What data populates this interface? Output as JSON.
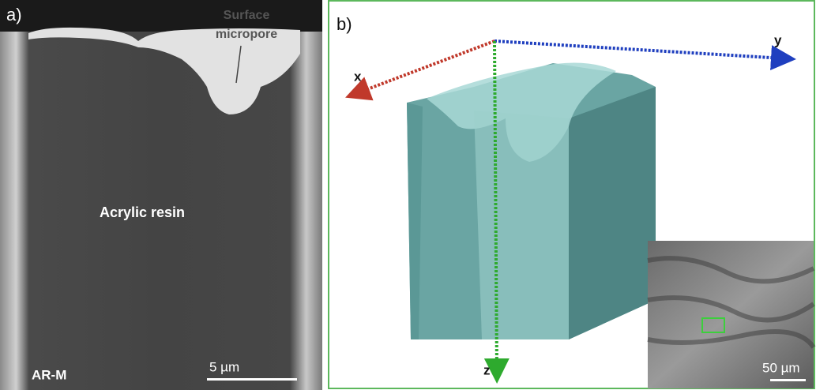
{
  "panel_a": {
    "label": "a)",
    "annotation": [
      "Surface",
      "micropore"
    ],
    "region_label": "Acrylic resin",
    "sample_label": "AR-M",
    "scale_bar": "5  µm"
  },
  "panel_b": {
    "label": "b)",
    "axes": {
      "x": "x",
      "y": "y",
      "z": "z"
    },
    "inset_scale_bar": "50 µm"
  }
}
